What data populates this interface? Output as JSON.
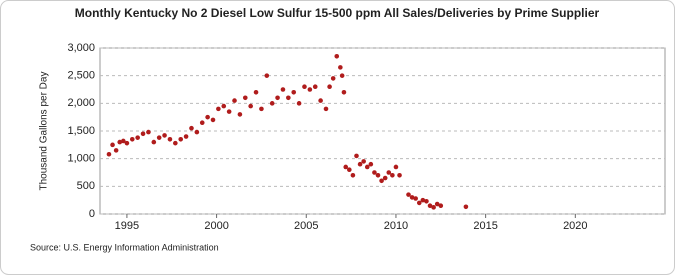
{
  "chart_data": {
    "type": "scatter",
    "title": "Monthly Kentucky No 2 Diesel Low Sulfur 15-500 ppm All Sales/Deliveries by Prime Supplier",
    "y_label": "Thousand Gallons per Day",
    "source": "Source: U.S. Energy Information Administration",
    "color": "#b01c1c",
    "grid": true,
    "xlim": [
      1993.5,
      2025
    ],
    "xticks": [
      1995,
      2000,
      2005,
      2010,
      2015,
      2020
    ],
    "ylim": [
      0,
      3000
    ],
    "yticks": [
      0,
      500,
      {
        "value": 1000,
        "label": "1,000"
      },
      {
        "value": 1500,
        "label": "1,500"
      },
      {
        "value": 2000,
        "label": "2,000"
      },
      {
        "value": 2500,
        "label": "2,500"
      },
      {
        "value": 3000,
        "label": "3,000"
      }
    ],
    "x": [
      1994.0,
      1994.2,
      1994.4,
      1994.6,
      1994.8,
      1995.0,
      1995.3,
      1995.6,
      1995.9,
      1996.2,
      1996.5,
      1996.8,
      1997.1,
      1997.4,
      1997.7,
      1998.0,
      1998.3,
      1998.6,
      1998.9,
      1999.2,
      1999.5,
      1999.8,
      2000.1,
      2000.4,
      2000.7,
      2001.0,
      2001.3,
      2001.6,
      2001.9,
      2002.2,
      2002.5,
      2002.8,
      2003.1,
      2003.4,
      2003.7,
      2004.0,
      2004.3,
      2004.6,
      2004.9,
      2005.2,
      2005.5,
      2005.8,
      2006.1,
      2006.3,
      2006.5,
      2006.7,
      2006.9,
      2007.0,
      2007.1,
      2007.2,
      2007.4,
      2007.6,
      2007.8,
      2008.0,
      2008.2,
      2008.4,
      2008.6,
      2008.8,
      2009.0,
      2009.2,
      2009.4,
      2009.6,
      2009.8,
      2010.0,
      2010.2,
      2010.7,
      2010.9,
      2011.1,
      2011.3,
      2011.5,
      2011.7,
      2011.9,
      2012.1,
      2012.3,
      2012.5,
      2013.9
    ],
    "values": [
      1080,
      1250,
      1150,
      1300,
      1320,
      1280,
      1350,
      1380,
      1450,
      1480,
      1300,
      1380,
      1420,
      1350,
      1280,
      1350,
      1400,
      1550,
      1480,
      1650,
      1750,
      1700,
      1900,
      1950,
      1850,
      2050,
      1800,
      2100,
      1950,
      2200,
      1900,
      2500,
      2000,
      2100,
      2250,
      2100,
      2200,
      2000,
      2300,
      2250,
      2300,
      2050,
      1900,
      2300,
      2450,
      2850,
      2650,
      2500,
      2200,
      850,
      800,
      700,
      1050,
      900,
      950,
      850,
      900,
      750,
      700,
      600,
      650,
      750,
      700,
      850,
      700,
      350,
      300,
      280,
      200,
      250,
      230,
      150,
      120,
      180,
      150,
      130
    ]
  }
}
